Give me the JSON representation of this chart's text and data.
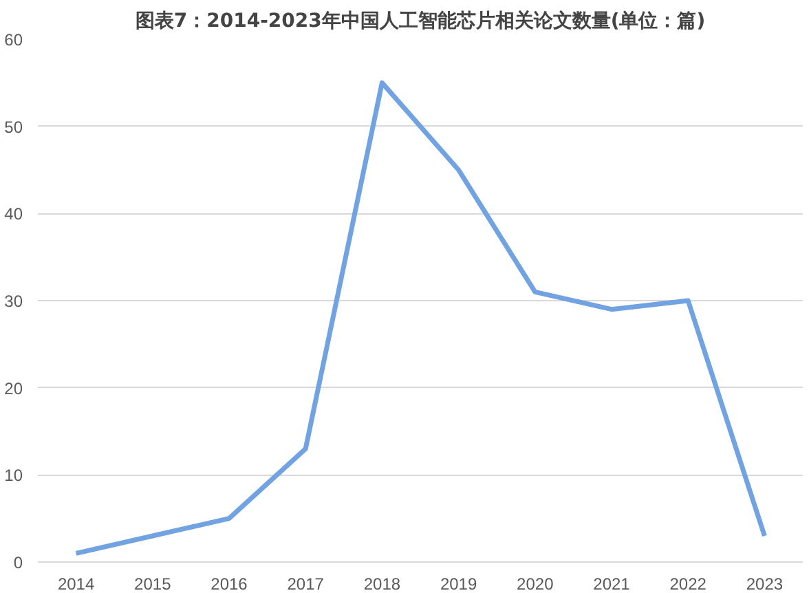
{
  "chart_data": {
    "type": "line",
    "title": "图表7：2014-2023年中国人工智能芯片相关论文数量(单位：篇)",
    "categories": [
      "2014",
      "2015",
      "2016",
      "2017",
      "2018",
      "2019",
      "2020",
      "2021",
      "2022",
      "2023"
    ],
    "series": [
      {
        "color": "#71a2e2",
        "values": [
          1,
          3,
          5,
          13,
          55,
          45,
          31,
          29,
          30,
          3
        ]
      }
    ],
    "ylim": [
      0,
      60
    ],
    "yticks": [
      0,
      10,
      20,
      30,
      40,
      50,
      60
    ],
    "grid": "y",
    "line_style": "solid"
  }
}
